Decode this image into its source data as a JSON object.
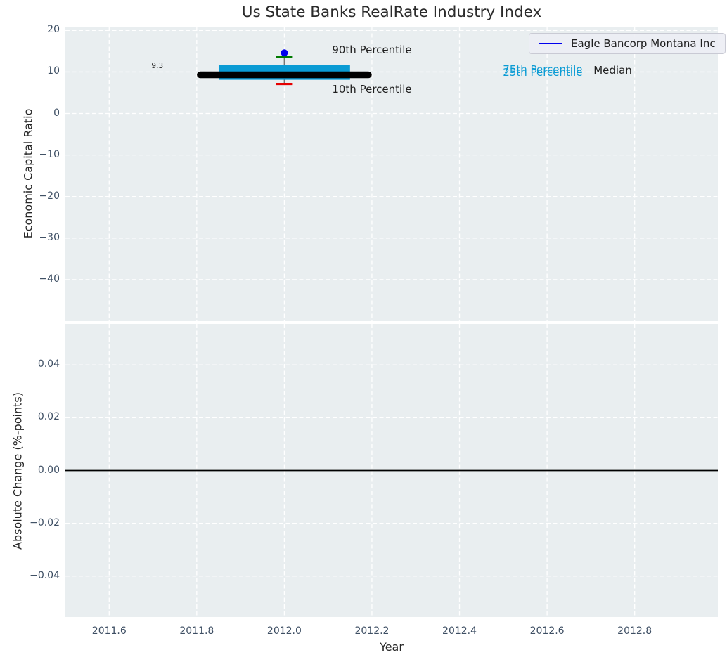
{
  "figure": {
    "title": "Us State Banks RealRate Industry Index"
  },
  "legend": {
    "label": "Eagle Bancorp Montana Inc"
  },
  "colors": {
    "figure_bg": "#ffffff",
    "plot_bg": "#e9eef0",
    "grid": "#ffffff",
    "iqr_box": "#0a9bd4",
    "median_line": "#000000",
    "company_marker": "#0000ee",
    "p90_cap": "#007a00",
    "p10_cap": "#e60000",
    "whisker": "#4a4a4a",
    "tick_label": "#3d4e63",
    "zero_line": "#000000"
  },
  "chart_data": [
    {
      "type": "boxplot",
      "subplot": "top",
      "title": "Us State Banks RealRate Industry Index",
      "xlabel": "Year",
      "ylabel": "Economic Capital Ratio",
      "xlim": [
        2011.5,
        2012.99
      ],
      "ylim": [
        -50,
        20.9
      ],
      "x_ticks": [
        2011.6,
        2011.8,
        2012.0,
        2012.2,
        2012.4,
        2012.6,
        2012.8
      ],
      "y_ticks": [
        20,
        10,
        0,
        -10,
        -20,
        -30,
        -40
      ],
      "y_tick_labels": [
        "20",
        "10",
        "0",
        "−10",
        "−20",
        "−30",
        "−40"
      ],
      "grid": true,
      "legend_position": "upper right",
      "legend_entries": [
        {
          "label": "Eagle Bancorp Montana Inc",
          "color": "#0000ee",
          "style": "line"
        }
      ],
      "company_point": {
        "name": "Eagle Bancorp Montana Inc",
        "x": 2012.0,
        "y": 14.6,
        "marker": "circle",
        "color": "#0000ee"
      },
      "distribution": {
        "x": 2012.0,
        "p90": 13.6,
        "p75": 11.7,
        "median": 9.3,
        "p25": 8.1,
        "p10": 7.1,
        "box_x_range": [
          2011.85,
          2012.15
        ],
        "median_x_range": [
          2011.8,
          2012.2
        ]
      },
      "annotations": [
        {
          "id": "median-value",
          "text": "9.3",
          "x": 2011.71,
          "y": 11.4,
          "size": 10.5,
          "color": "#1f1f1f"
        },
        {
          "id": "p90-label",
          "text": "90th Percentile",
          "x": 2012.2,
          "y": 15.4,
          "size": 15,
          "color": "#1f1f1f"
        },
        {
          "id": "p10-label",
          "text": "10th Percentile",
          "x": 2012.2,
          "y": 5.8,
          "size": 15,
          "color": "#1f1f1f"
        },
        {
          "id": "p75-label",
          "text": "75th Percentile",
          "x": 2012.59,
          "y": 10.65,
          "size": 15,
          "color": "#0a9bd4"
        },
        {
          "id": "p25-label",
          "text": "25th Percentile",
          "x": 2012.59,
          "y": 9.95,
          "size": 15,
          "color": "#0a9bd4"
        },
        {
          "id": "median-label",
          "text": "Median",
          "x": 2012.75,
          "y": 10.35,
          "size": 15,
          "color": "#1f1f1f"
        }
      ]
    },
    {
      "type": "line",
      "subplot": "bottom",
      "xlabel": "Year",
      "ylabel": "Absolute Change (%-points)",
      "xlim": [
        2011.5,
        2012.99
      ],
      "ylim": [
        -0.0555,
        0.0555
      ],
      "x_ticks": [
        2011.6,
        2011.8,
        2012.0,
        2012.2,
        2012.4,
        2012.6,
        2012.8
      ],
      "x_tick_labels": [
        "2011.6",
        "2011.8",
        "2012.0",
        "2012.2",
        "2012.4",
        "2012.6",
        "2012.8"
      ],
      "y_ticks": [
        0.04,
        0.02,
        0,
        -0.02,
        -0.04
      ],
      "y_tick_labels": [
        "0.04",
        "0.02",
        "0.00",
        "−0.02",
        "−0.04"
      ],
      "grid": true,
      "zero_line": 0.0,
      "series": []
    }
  ]
}
